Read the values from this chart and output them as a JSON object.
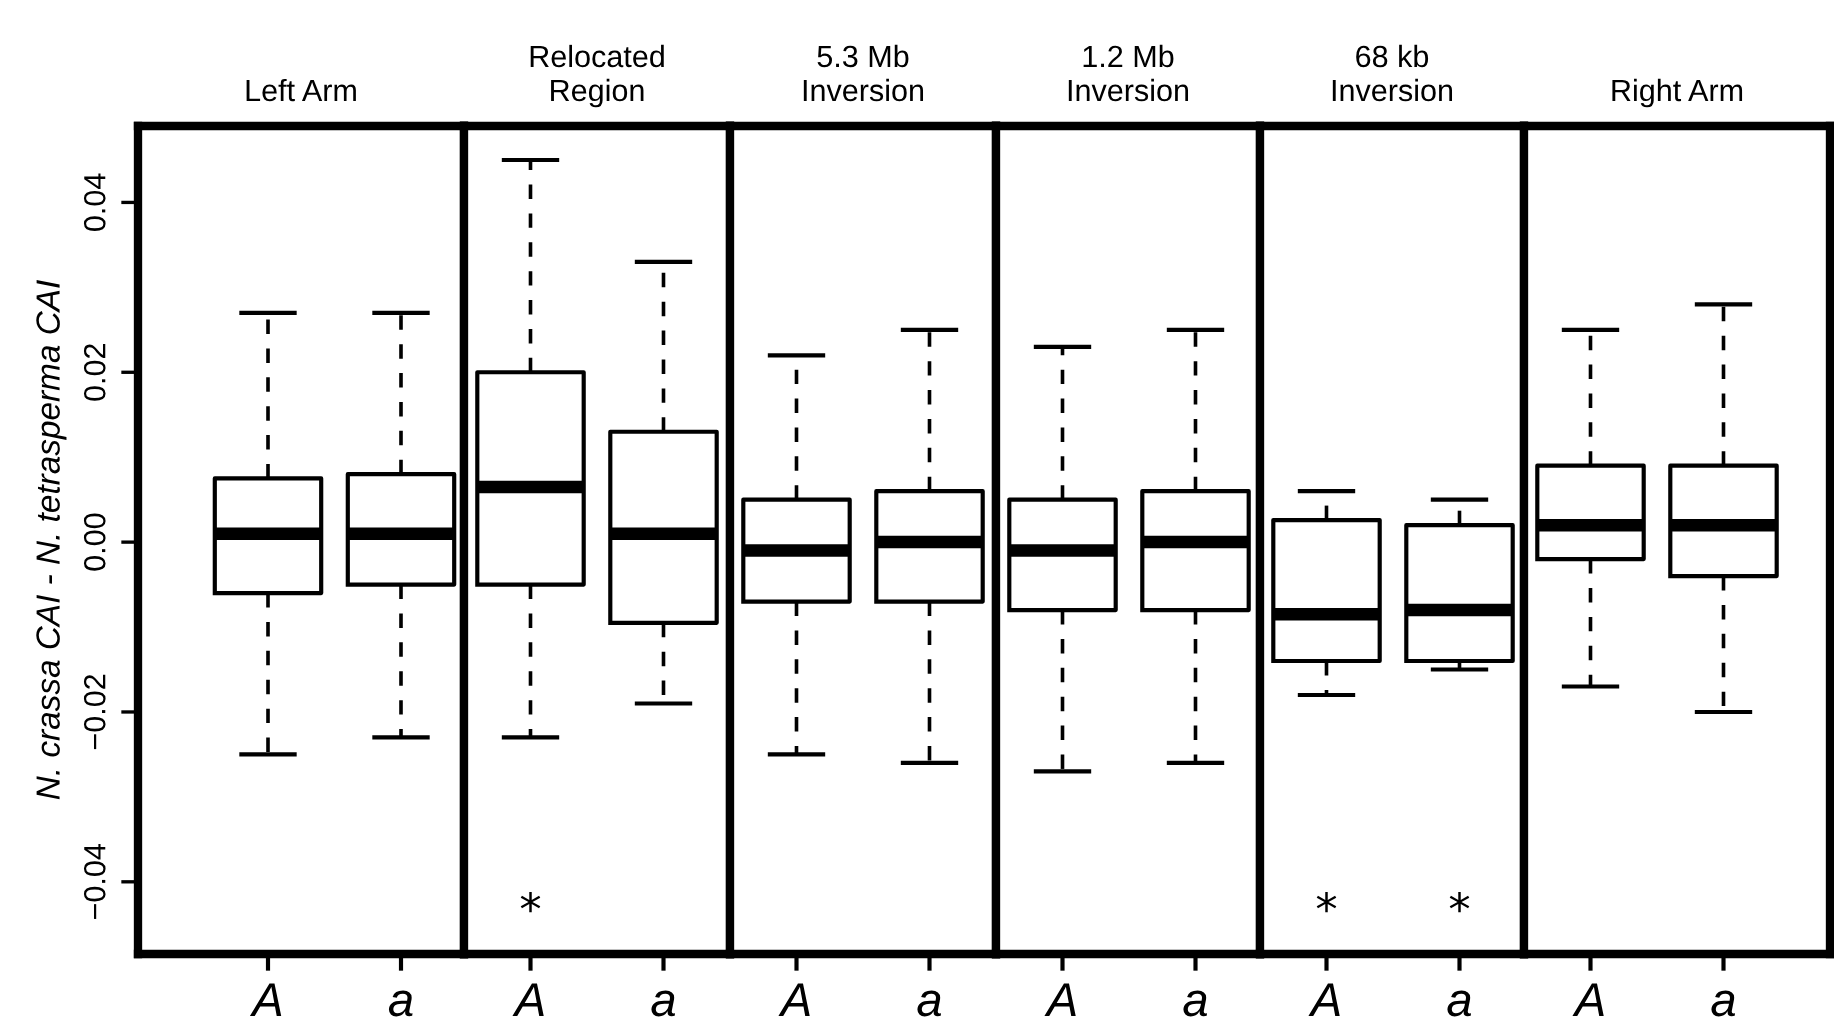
{
  "chart_data": [
    {
      "type": "box",
      "title": "Left Arm",
      "ylabel": "N. crassa CAI - N. tetrasperma CAI",
      "categories": [
        "A",
        "a"
      ],
      "ylim": [
        -0.0485,
        0.049
      ],
      "yticks": [
        {
          "value": -0.04,
          "label": "−0.04"
        },
        {
          "value": -0.02,
          "label": "−0.02"
        },
        {
          "value": 0.0,
          "label": "0.00"
        },
        {
          "value": 0.02,
          "label": "0.02"
        },
        {
          "value": 0.04,
          "label": "0.04"
        }
      ],
      "boxes": [
        {
          "low": -0.025,
          "q1": -0.006,
          "median": 0.001,
          "q3": 0.0075,
          "high": 0.027
        },
        {
          "low": -0.023,
          "q1": -0.005,
          "median": 0.001,
          "q3": 0.008,
          "high": 0.027
        }
      ]
    },
    {
      "type": "box",
      "title": "Relocated\nRegion",
      "categories": [
        "A",
        "a"
      ],
      "ylim": [
        -0.0485,
        0.049
      ],
      "tick_labels": "x",
      "boxes": [
        {
          "low": -0.023,
          "q1": -0.005,
          "median": 0.0065,
          "q3": 0.02,
          "high": 0.045
        },
        {
          "low": -0.019,
          "q1": -0.0095,
          "median": 0.001,
          "q3": 0.013,
          "high": 0.033
        }
      ],
      "annotations": [
        "*"
      ]
    },
    {
      "type": "box",
      "title": "5.3 Mb\nInversion",
      "categories": [
        "A",
        "a"
      ],
      "ylim": [
        -0.0485,
        0.049
      ],
      "tick_labels": "x",
      "boxes": [
        {
          "low": -0.025,
          "q1": -0.007,
          "median": -0.001,
          "q3": 0.005,
          "high": 0.022
        },
        {
          "low": -0.026,
          "q1": -0.007,
          "median": 0.0,
          "q3": 0.006,
          "high": 0.025
        }
      ]
    },
    {
      "type": "box",
      "title": "1.2 Mb\nInversion",
      "categories": [
        "A",
        "a"
      ],
      "ylim": [
        -0.0485,
        0.049
      ],
      "tick_labels": "x",
      "boxes": [
        {
          "low": -0.027,
          "q1": -0.008,
          "median": -0.001,
          "q3": 0.005,
          "high": 0.023
        },
        {
          "low": -0.026,
          "q1": -0.008,
          "median": 0.0,
          "q3": 0.006,
          "high": 0.025
        }
      ]
    },
    {
      "type": "box",
      "title": "68 kb\nInversion",
      "categories": [
        "A",
        "a"
      ],
      "ylim": [
        -0.0485,
        0.049
      ],
      "tick_labels": "x",
      "boxes": [
        {
          "low": -0.018,
          "q1": -0.014,
          "median": -0.0085,
          "q3": 0.0026,
          "high": 0.006
        },
        {
          "low": -0.015,
          "q1": -0.014,
          "median": -0.008,
          "q3": 0.002,
          "high": 0.005
        }
      ],
      "annotations": [
        "*",
        "*"
      ]
    },
    {
      "type": "box",
      "title": "Right Arm",
      "categories": [
        "A",
        "a"
      ],
      "ylim": [
        -0.0485,
        0.049
      ],
      "tick_labels": "x",
      "boxes": [
        {
          "low": -0.017,
          "q1": -0.002,
          "median": 0.002,
          "q3": 0.009,
          "high": 0.025
        },
        {
          "low": -0.02,
          "q1": -0.004,
          "median": 0.002,
          "q3": 0.009,
          "high": 0.028
        }
      ]
    }
  ]
}
